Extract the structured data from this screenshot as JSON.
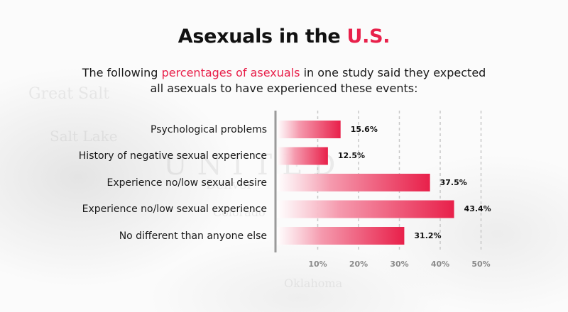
{
  "title": {
    "prefix": "Asexuals in the",
    "accent": "U.S."
  },
  "subtitle": {
    "before": "The following",
    "accent": "percentages of asexuals",
    "after": "in one study said they expected",
    "line2": "all asexuals to have experienced these events:"
  },
  "chart_data": {
    "type": "bar",
    "orientation": "horizontal",
    "categories": [
      "Psychological problems",
      "History of negative sexual experience",
      "Experience no/low sexual desire",
      "Experience no/low sexual experience",
      "No different than anyone else"
    ],
    "values": [
      15.6,
      12.5,
      37.5,
      43.4,
      31.2
    ],
    "value_labels": [
      "15.6%",
      "12.5%",
      "37.5%",
      "43.4%",
      "31.2%"
    ],
    "xticks": [
      "10%",
      "20%",
      "30%",
      "40%",
      "50%"
    ],
    "xlim": [
      0,
      50
    ],
    "grid": true,
    "bar_color": "#e8204a"
  }
}
